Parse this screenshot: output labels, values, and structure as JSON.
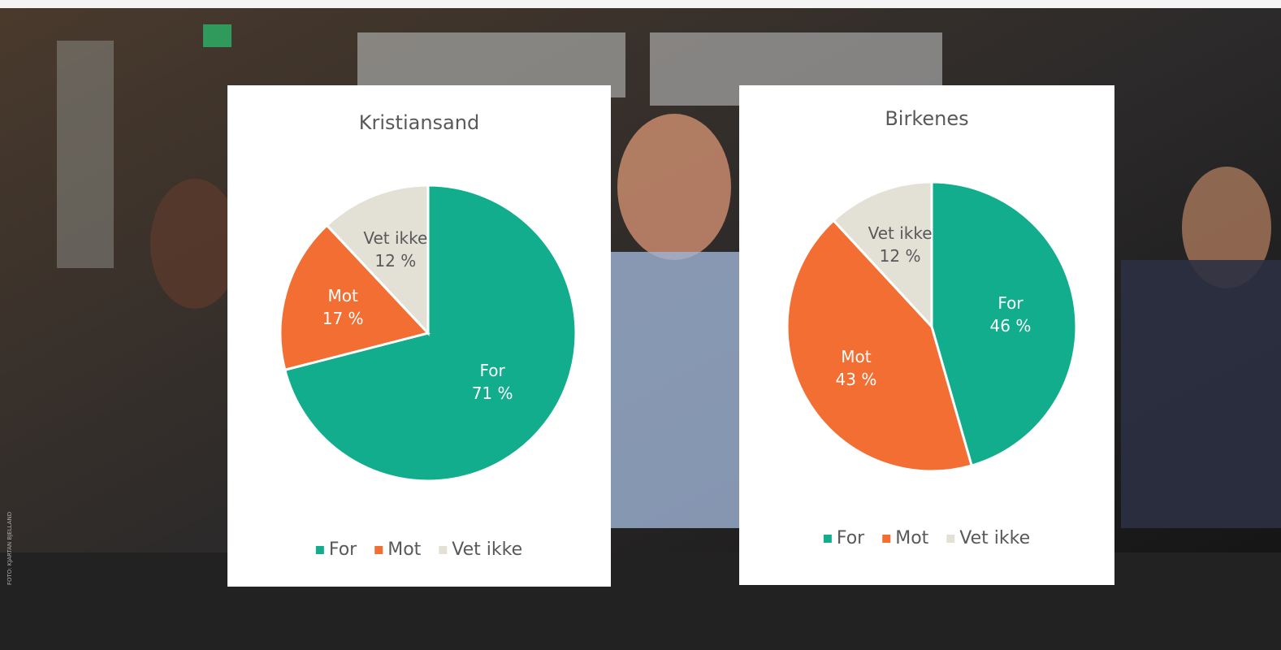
{
  "photo_credit": "FOTO: KJARTAN BJELLAND",
  "chart_data": [
    {
      "type": "pie",
      "title": "Kristiansand",
      "categories": [
        "For",
        "Mot",
        "Vet ikke"
      ],
      "values": [
        71,
        17,
        12
      ],
      "value_labels": [
        "71 %",
        "17 %",
        "12 %"
      ],
      "colors": [
        "#12ad8c",
        "#f26e32",
        "#e3e0d6"
      ],
      "legend": "bottom"
    },
    {
      "type": "pie",
      "title": "Birkenes",
      "categories": [
        "For",
        "Mot",
        "Vet ikke"
      ],
      "values": [
        46,
        43,
        12
      ],
      "value_labels": [
        "46 %",
        "43 %",
        "12 %"
      ],
      "colors": [
        "#12ad8c",
        "#f26e32",
        "#e3e0d6"
      ],
      "legend": "bottom"
    }
  ]
}
